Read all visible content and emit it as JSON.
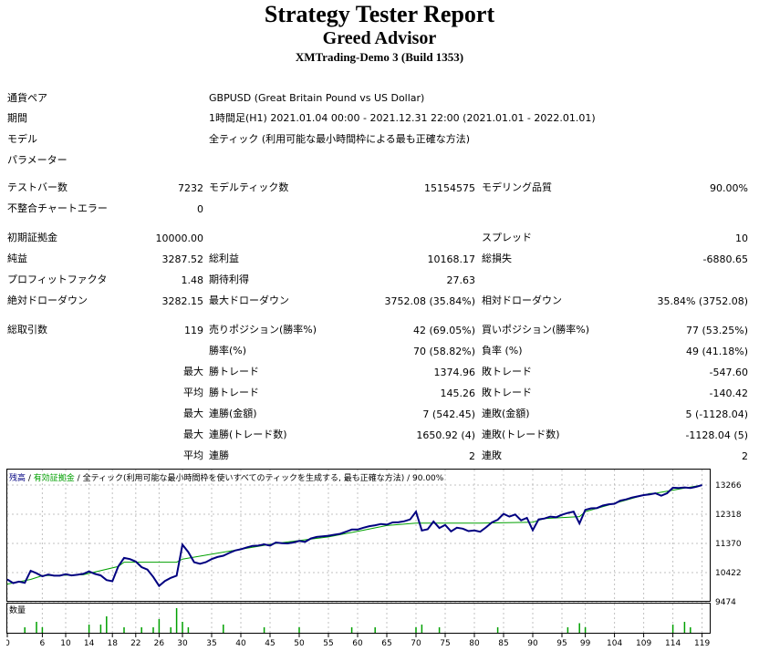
{
  "header": {
    "title": "Strategy Tester Report",
    "advisor": "Greed Advisor",
    "server": "XMTrading-Demo 3 (Build 1353)"
  },
  "info": {
    "symbol_label": "通貨ペア",
    "symbol_value": "GBPUSD (Great Britain Pound vs US Dollar)",
    "period_label": "期間",
    "period_value": "1時間足(H1) 2021.01.04 00:00 - 2021.12.31 22:00 (2021.01.01 - 2022.01.01)",
    "model_label": "モデル",
    "model_value": "全ティック (利用可能な最小時間枠による最も正確な方法)",
    "params_label": "パラメーター"
  },
  "stats": {
    "bars_label": "テストバー数",
    "bars_value": "7232",
    "ticks_label": "モデルティック数",
    "ticks_value": "15154575",
    "quality_label": "モデリング品質",
    "quality_value": "90.00%",
    "mismatch_label": "不整合チャートエラー",
    "mismatch_value": "0",
    "deposit_label": "初期証拠金",
    "deposit_value": "10000.00",
    "spread_label": "スプレッド",
    "spread_value": "10",
    "net_label": "純益",
    "net_value": "3287.52",
    "gross_profit_label": "総利益",
    "gross_profit_value": "10168.17",
    "gross_loss_label": "総損失",
    "gross_loss_value": "-6880.65",
    "pf_label": "プロフィットファクタ",
    "pf_value": "1.48",
    "expected_label": "期待利得",
    "expected_value": "27.63",
    "abs_dd_label": "絶対ドローダウン",
    "abs_dd_value": "3282.15",
    "max_dd_label": "最大ドローダウン",
    "max_dd_value": "3752.08 (35.84%)",
    "rel_dd_label": "相対ドローダウン",
    "rel_dd_value": "35.84% (3752.08)",
    "total_trades_label": "総取引数",
    "total_trades_value": "119",
    "short_label": "売りポジション(勝率%)",
    "short_value": "42 (69.05%)",
    "long_label": "買いポジション(勝率%)",
    "long_value": "77 (53.25%)",
    "win_rate_label": "勝率(%)",
    "win_rate_value": "70 (58.82%)",
    "loss_rate_label": "負率 (%)",
    "loss_rate_value": "49 (41.18%)",
    "max_word": "最大",
    "avg_word": "平均",
    "largest_win_label": "勝トレード",
    "largest_win_value": "1374.96",
    "largest_loss_label": "敗トレード",
    "largest_loss_value": "-547.60",
    "avg_win_label": "勝トレード",
    "avg_win_value": "145.26",
    "avg_loss_label": "敗トレード",
    "avg_loss_value": "-140.42",
    "max_consec_win_label": "連勝(金額)",
    "max_consec_win_value": "7 (542.45)",
    "max_consec_loss_label": "連敗(金額)",
    "max_consec_loss_value": "5 (-1128.04)",
    "max_consec_profit_label": "連勝(トレード数)",
    "max_consec_profit_value": "1650.92 (4)",
    "max_consec_lossamt_label": "連敗(トレード数)",
    "max_consec_lossamt_value": "-1128.04 (5)",
    "avg_consec_win_label": "連勝",
    "avg_consec_win_value": "2",
    "avg_consec_loss_label": "連敗",
    "avg_consec_loss_value": "2"
  },
  "chart_data": {
    "type": "line",
    "legend_balance": "残高",
    "legend_equity": "有効証拠金",
    "legend_rest": "全ティック(利用可能な最小時間枠を使いすべてのティックを生成する, 最も正確な方法)",
    "legend_quality": "90.00%",
    "volume_label": "数量",
    "y_ticks": [
      "13266",
      "12318",
      "11370",
      "10422",
      "9474"
    ],
    "ylim": [
      9474,
      13266
    ],
    "x_ticks": [
      0,
      6,
      10,
      14,
      18,
      22,
      26,
      30,
      35,
      40,
      45,
      50,
      55,
      60,
      65,
      70,
      75,
      80,
      85,
      90,
      95,
      99,
      104,
      109,
      114,
      119
    ],
    "xlim": [
      0,
      120
    ],
    "series": [
      {
        "name": "残高",
        "color": "#000080",
        "values": [
          [
            0,
            10200
          ],
          [
            1,
            10080
          ],
          [
            2,
            10130
          ],
          [
            3,
            10090
          ],
          [
            4,
            10480
          ],
          [
            5,
            10400
          ],
          [
            6,
            10300
          ],
          [
            7,
            10360
          ],
          [
            8,
            10320
          ],
          [
            9,
            10320
          ],
          [
            10,
            10370
          ],
          [
            11,
            10330
          ],
          [
            12,
            10350
          ],
          [
            13,
            10380
          ],
          [
            14,
            10460
          ],
          [
            15,
            10380
          ],
          [
            16,
            10330
          ],
          [
            17,
            10180
          ],
          [
            18,
            10140
          ],
          [
            19,
            10620
          ],
          [
            20,
            10900
          ],
          [
            21,
            10860
          ],
          [
            22,
            10780
          ],
          [
            23,
            10600
          ],
          [
            24,
            10520
          ],
          [
            25,
            10280
          ],
          [
            26,
            9990
          ],
          [
            27,
            10150
          ],
          [
            28,
            10250
          ],
          [
            29,
            10320
          ],
          [
            30,
            11330
          ],
          [
            31,
            11090
          ],
          [
            32,
            10760
          ],
          [
            33,
            10710
          ],
          [
            34,
            10760
          ],
          [
            35,
            10860
          ],
          [
            36,
            10930
          ],
          [
            37,
            10970
          ],
          [
            38,
            11060
          ],
          [
            39,
            11140
          ],
          [
            40,
            11180
          ],
          [
            41,
            11240
          ],
          [
            42,
            11290
          ],
          [
            43,
            11300
          ],
          [
            44,
            11340
          ],
          [
            45,
            11300
          ],
          [
            46,
            11400
          ],
          [
            47,
            11380
          ],
          [
            48,
            11370
          ],
          [
            49,
            11400
          ],
          [
            50,
            11450
          ],
          [
            51,
            11420
          ],
          [
            52,
            11530
          ],
          [
            53,
            11580
          ],
          [
            54,
            11600
          ],
          [
            55,
            11620
          ],
          [
            56,
            11650
          ],
          [
            57,
            11680
          ],
          [
            58,
            11750
          ],
          [
            59,
            11820
          ],
          [
            60,
            11820
          ],
          [
            61,
            11880
          ],
          [
            62,
            11930
          ],
          [
            63,
            11960
          ],
          [
            64,
            12000
          ],
          [
            65,
            11980
          ],
          [
            66,
            12050
          ],
          [
            67,
            12060
          ],
          [
            68,
            12090
          ],
          [
            69,
            12150
          ],
          [
            70,
            12400
          ],
          [
            71,
            11790
          ],
          [
            72,
            11830
          ],
          [
            73,
            12080
          ],
          [
            74,
            11870
          ],
          [
            75,
            11970
          ],
          [
            76,
            11760
          ],
          [
            77,
            11880
          ],
          [
            78,
            11850
          ],
          [
            79,
            11770
          ],
          [
            80,
            11790
          ],
          [
            81,
            11750
          ],
          [
            82,
            11890
          ],
          [
            83,
            12050
          ],
          [
            84,
            12140
          ],
          [
            85,
            12330
          ],
          [
            86,
            12240
          ],
          [
            87,
            12310
          ],
          [
            88,
            12120
          ],
          [
            89,
            12200
          ],
          [
            90,
            11800
          ],
          [
            91,
            12150
          ],
          [
            92,
            12180
          ],
          [
            93,
            12240
          ],
          [
            94,
            12220
          ],
          [
            95,
            12300
          ],
          [
            96,
            12360
          ],
          [
            97,
            12400
          ],
          [
            98,
            12020
          ],
          [
            99,
            12460
          ],
          [
            100,
            12510
          ],
          [
            101,
            12520
          ],
          [
            102,
            12600
          ],
          [
            103,
            12640
          ],
          [
            104,
            12660
          ],
          [
            105,
            12760
          ],
          [
            106,
            12800
          ],
          [
            107,
            12860
          ],
          [
            108,
            12900
          ],
          [
            109,
            12940
          ],
          [
            110,
            12960
          ],
          [
            111,
            13000
          ],
          [
            112,
            12920
          ],
          [
            113,
            13000
          ],
          [
            114,
            13180
          ],
          [
            115,
            13170
          ],
          [
            116,
            13190
          ],
          [
            117,
            13170
          ],
          [
            118,
            13210
          ],
          [
            119,
            13266
          ]
        ]
      },
      {
        "name": "有効証拠金",
        "color": "#00a000",
        "values": [
          [
            0,
            10050
          ],
          [
            4,
            10200
          ],
          [
            6,
            10320
          ],
          [
            13,
            10350
          ],
          [
            19,
            10620
          ],
          [
            20,
            10760
          ],
          [
            29,
            10760
          ],
          [
            30,
            10860
          ],
          [
            40,
            11180
          ],
          [
            46,
            11370
          ],
          [
            55,
            11580
          ],
          [
            61,
            11800
          ],
          [
            65,
            11950
          ],
          [
            70,
            12030
          ],
          [
            81,
            12030
          ],
          [
            90,
            12060
          ],
          [
            92,
            12180
          ],
          [
            98,
            12240
          ],
          [
            99,
            12400
          ],
          [
            110,
            12990
          ],
          [
            111,
            13000
          ],
          [
            119,
            13266
          ]
        ]
      }
    ],
    "volume_bars": [
      {
        "x": 3,
        "v": 0.2
      },
      {
        "x": 5,
        "v": 0.4
      },
      {
        "x": 6,
        "v": 0.2
      },
      {
        "x": 14,
        "v": 0.3
      },
      {
        "x": 16,
        "v": 0.3
      },
      {
        "x": 17,
        "v": 0.6
      },
      {
        "x": 20,
        "v": 0.2
      },
      {
        "x": 23,
        "v": 0.2
      },
      {
        "x": 25,
        "v": 0.2
      },
      {
        "x": 26,
        "v": 0.5
      },
      {
        "x": 28,
        "v": 0.2
      },
      {
        "x": 29,
        "v": 0.9
      },
      {
        "x": 30,
        "v": 0.4
      },
      {
        "x": 31,
        "v": 0.2
      },
      {
        "x": 37,
        "v": 0.3
      },
      {
        "x": 44,
        "v": 0.2
      },
      {
        "x": 50,
        "v": 0.2
      },
      {
        "x": 59,
        "v": 0.2
      },
      {
        "x": 63,
        "v": 0.2
      },
      {
        "x": 70,
        "v": 0.2
      },
      {
        "x": 71,
        "v": 0.3
      },
      {
        "x": 74,
        "v": 0.2
      },
      {
        "x": 84,
        "v": 0.2
      },
      {
        "x": 96,
        "v": 0.2
      },
      {
        "x": 98,
        "v": 0.35
      },
      {
        "x": 99,
        "v": 0.2
      },
      {
        "x": 114,
        "v": 0.3
      },
      {
        "x": 116,
        "v": 0.4
      },
      {
        "x": 117,
        "v": 0.2
      }
    ]
  }
}
